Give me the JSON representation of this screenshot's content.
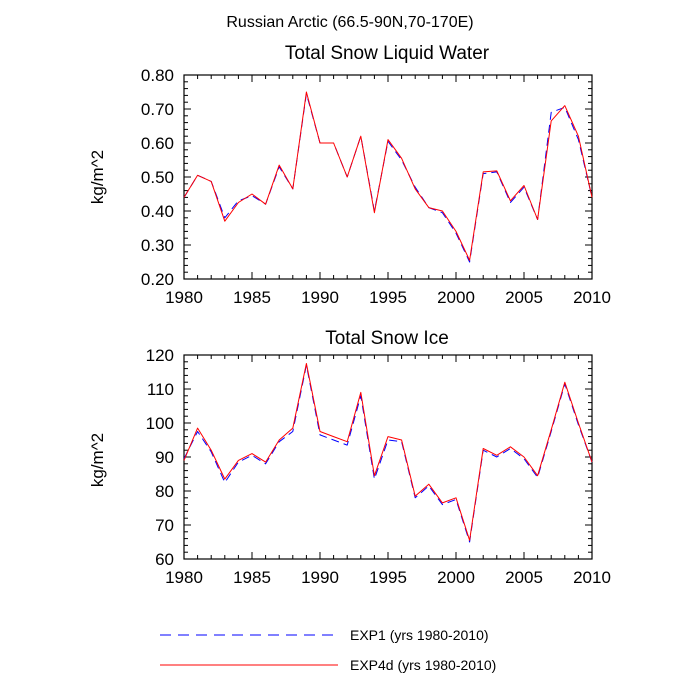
{
  "figure_title": "Russian Arctic (66.5-90N,70-170E)",
  "chart_data": [
    {
      "type": "line",
      "title": "Total Snow Liquid Water",
      "ylabel": "kg/m^2",
      "xlabel": "",
      "xlim": [
        1980,
        2010
      ],
      "ylim": [
        0.2,
        0.8
      ],
      "xticks": [
        1980,
        1985,
        1990,
        1995,
        2000,
        2005,
        2010
      ],
      "yticks": [
        0.2,
        0.3,
        0.4,
        0.5,
        0.6,
        0.7,
        0.8
      ],
      "ytick_labels": [
        "0.20",
        "0.30",
        "0.40",
        "0.50",
        "0.60",
        "0.70",
        "0.80"
      ],
      "grid": false,
      "x": [
        1980,
        1981,
        1982,
        1983,
        1984,
        1985,
        1986,
        1987,
        1988,
        1989,
        1990,
        1991,
        1992,
        1993,
        1994,
        1995,
        1996,
        1997,
        1998,
        1999,
        2000,
        2001,
        2002,
        2003,
        2004,
        2005,
        2006,
        2007,
        2008,
        2009,
        2010
      ],
      "series": [
        {
          "name": "EXP1 (yrs 1980-2010)",
          "color": "#0000ff",
          "dash": "dashed",
          "values": [
            0.44,
            0.505,
            0.487,
            0.38,
            0.43,
            0.445,
            0.42,
            0.53,
            0.465,
            0.745,
            0.6,
            0.6,
            0.5,
            0.62,
            0.4,
            0.605,
            0.55,
            0.47,
            0.41,
            0.395,
            0.335,
            0.25,
            0.51,
            0.515,
            0.425,
            0.47,
            0.375,
            0.69,
            0.705,
            0.61,
            0.44
          ]
        },
        {
          "name": "EXP4d (yrs 1980-2010)",
          "color": "#ff0000",
          "dash": "solid",
          "values": [
            0.44,
            0.505,
            0.487,
            0.37,
            0.425,
            0.45,
            0.42,
            0.535,
            0.465,
            0.75,
            0.6,
            0.6,
            0.5,
            0.62,
            0.395,
            0.61,
            0.555,
            0.465,
            0.41,
            0.4,
            0.34,
            0.255,
            0.515,
            0.518,
            0.43,
            0.475,
            0.375,
            0.665,
            0.71,
            0.62,
            0.44
          ]
        }
      ]
    },
    {
      "type": "line",
      "title": "Total Snow Ice",
      "ylabel": "kg/m^2",
      "xlabel": "",
      "xlim": [
        1980,
        2010
      ],
      "ylim": [
        60,
        120
      ],
      "xticks": [
        1980,
        1985,
        1990,
        1995,
        2000,
        2005,
        2010
      ],
      "yticks": [
        60,
        70,
        80,
        90,
        100,
        110,
        120
      ],
      "ytick_labels": [
        "60",
        "70",
        "80",
        "90",
        "100",
        "110",
        "120"
      ],
      "grid": false,
      "x": [
        1980,
        1981,
        1982,
        1983,
        1984,
        1985,
        1986,
        1987,
        1988,
        1989,
        1990,
        1991,
        1992,
        1993,
        1994,
        1995,
        1996,
        1997,
        1998,
        1999,
        2000,
        2001,
        2002,
        2003,
        2004,
        2005,
        2006,
        2007,
        2008,
        2009,
        2010
      ],
      "series": [
        {
          "name": "EXP1 (yrs 1980-2010)",
          "color": "#0000ff",
          "dash": "dashed",
          "values": [
            89.5,
            97.5,
            91.5,
            82.5,
            88.5,
            90.5,
            88.0,
            94.5,
            97.5,
            117.0,
            96.5,
            95.0,
            93.5,
            108.0,
            83.5,
            95.0,
            94.5,
            78.0,
            81.5,
            76.0,
            77.5,
            65.0,
            92.0,
            90.0,
            92.5,
            89.5,
            84.0,
            97.5,
            111.5,
            99.5,
            88.5
          ]
        },
        {
          "name": "EXP4d (yrs 1980-2010)",
          "color": "#ff0000",
          "dash": "solid",
          "values": [
            89.0,
            98.5,
            92.0,
            83.5,
            89.0,
            91.0,
            88.5,
            95.0,
            98.5,
            117.5,
            97.5,
            96.0,
            94.5,
            109.0,
            84.5,
            96.0,
            95.0,
            78.5,
            82.0,
            76.5,
            78.0,
            65.5,
            92.5,
            90.5,
            93.0,
            90.0,
            84.5,
            98.0,
            112.0,
            100.0,
            88.5
          ]
        }
      ]
    }
  ],
  "legend": {
    "placement": "bottom",
    "entries": [
      {
        "label": "EXP1 (yrs 1980-2010)",
        "color": "#0000ff",
        "dash": "dashed"
      },
      {
        "label": "EXP4d (yrs 1980-2010)",
        "color": "#ff0000",
        "dash": "solid"
      }
    ]
  }
}
